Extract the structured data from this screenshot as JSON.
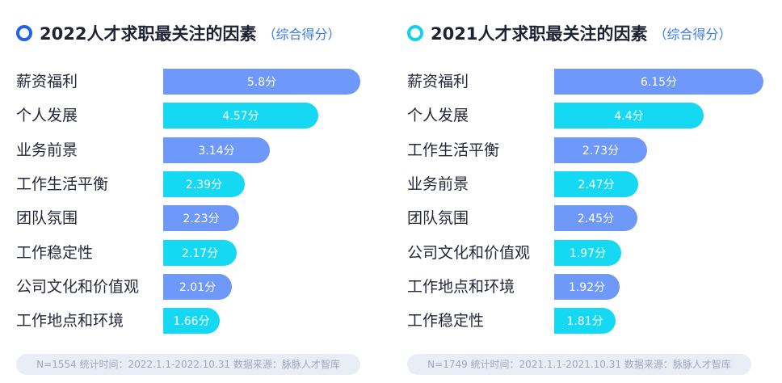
{
  "colors": {
    "blue": "#6f98fb",
    "cyan": "#15d8f2",
    "ring_left": "#1f63e8",
    "ring_right": "#10d2ea",
    "subtitle": "#3a7cf0"
  },
  "panels": [
    {
      "title": "2022人才求职最关注的因素",
      "subtitle": "（综合得分）",
      "ring_color": "#1f63e8",
      "footer": "N=1554   统计时间：2022.1.1-2022.10.31   数据来源：脉脉人才智库"
    },
    {
      "title": "2021人才求职最关注的因素",
      "subtitle": "（综合得分）",
      "ring_color": "#10d2ea",
      "footer": "N=1749   统计时间：2021.1.1-2021.10.31   数据来源：脉脉人才智库"
    }
  ],
  "chart_data": [
    {
      "type": "bar",
      "orientation": "horizontal",
      "title": "2022人才求职最关注的因素",
      "subtitle": "（综合得分）",
      "categories": [
        "薪资福利",
        "个人发展",
        "业务前景",
        "工作生活平衡",
        "团队氛围",
        "工作稳定性",
        "公司文化和价值观",
        "工作地点和环境"
      ],
      "values": [
        5.8,
        4.57,
        3.14,
        2.39,
        2.23,
        2.17,
        2.01,
        1.66
      ],
      "value_labels": [
        "5.8分",
        "4.57分",
        "3.14分",
        "2.39分",
        "2.23分",
        "2.17分",
        "2.01分",
        "1.66分"
      ],
      "bar_colors": [
        "#6f98fb",
        "#15d8f2",
        "#6f98fb",
        "#15d8f2",
        "#6f98fb",
        "#15d8f2",
        "#6f98fb",
        "#15d8f2"
      ]
    },
    {
      "type": "bar",
      "orientation": "horizontal",
      "title": "2021人才求职最关注的因素",
      "subtitle": "（综合得分）",
      "categories": [
        "薪资福利",
        "个人发展",
        "工作生活平衡",
        "业务前景",
        "团队氛围",
        "公司文化和价值观",
        "工作地点和环境",
        "工作稳定性"
      ],
      "values": [
        6.15,
        4.4,
        2.73,
        2.47,
        2.45,
        1.97,
        1.92,
        1.81
      ],
      "value_labels": [
        "6.15分",
        "4.4分",
        "2.73分",
        "2.47分",
        "2.45分",
        "1.97分",
        "1.92分",
        "1.81分"
      ],
      "bar_colors": [
        "#6f98fb",
        "#15d8f2",
        "#6f98fb",
        "#15d8f2",
        "#6f98fb",
        "#15d8f2",
        "#6f98fb",
        "#15d8f2"
      ]
    }
  ]
}
